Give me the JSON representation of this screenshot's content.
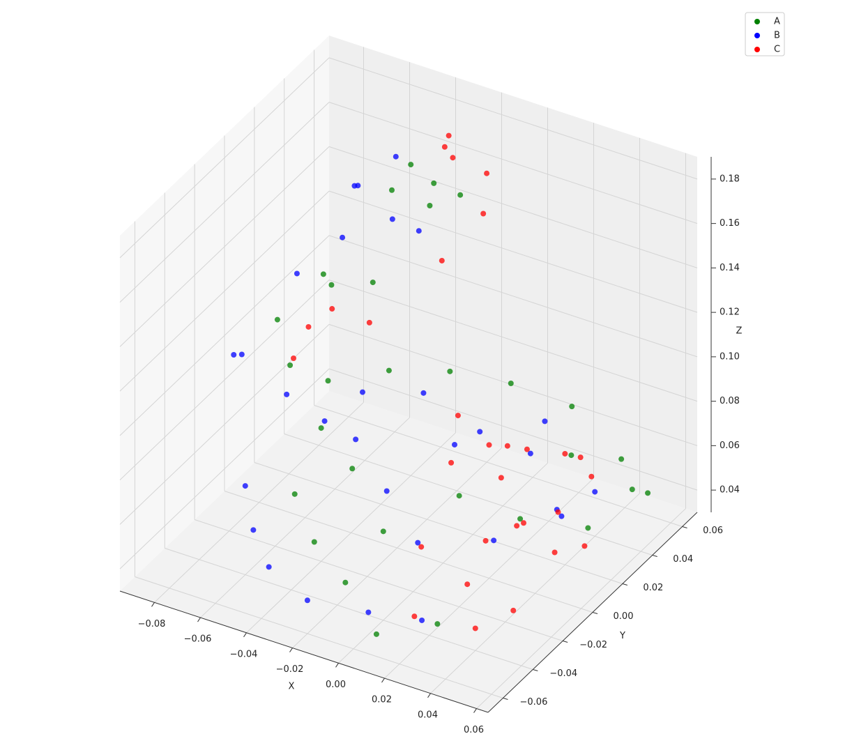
{
  "chart_data": {
    "type": "scatter3d",
    "xlabel": "X",
    "ylabel": "Y",
    "zlabel": "Z",
    "xlim": [
      -0.095,
      0.065
    ],
    "ylim": [
      -0.07,
      0.07
    ],
    "zlim": [
      0.03,
      0.19
    ],
    "xticks": [
      {
        "value": -0.08,
        "label": "−0.08"
      },
      {
        "value": -0.06,
        "label": "−0.06"
      },
      {
        "value": -0.04,
        "label": "−0.04"
      },
      {
        "value": -0.02,
        "label": "−0.02"
      },
      {
        "value": 0,
        "label": "0.00"
      },
      0.02,
      0.04,
      0.06
    ],
    "yticks": [
      {
        "value": -0.06,
        "label": "−0.06"
      },
      {
        "value": -0.04,
        "label": "−0.04"
      },
      {
        "value": -0.02,
        "label": "−0.02"
      },
      {
        "value": 0,
        "label": "0.00"
      },
      0.02,
      0.04,
      0.06
    ],
    "zticks": [
      0.04,
      0.06,
      0.08,
      {
        "value": 0.1,
        "label": "0.10"
      },
      0.12,
      0.14,
      0.16,
      0.18
    ],
    "grid": true,
    "legend": "upper right",
    "series": [
      {
        "name": "A",
        "color": "#008000",
        "x": [
          -0.072,
          -0.065,
          -0.06,
          -0.055,
          -0.05,
          -0.045,
          -0.04,
          -0.035,
          -0.03,
          -0.025,
          -0.05,
          -0.04,
          -0.03,
          -0.02,
          -0.01,
          0.0,
          0.01,
          0.02,
          0.03,
          0.04,
          0.045,
          0.05,
          0.03,
          0.01,
          -0.01,
          -0.03,
          -0.045,
          0.02,
          0.05,
          0.04
        ],
        "y": [
          0.0,
          0.02,
          -0.01,
          0.01,
          0.03,
          0.035,
          0.04,
          0.045,
          0.04,
          0.05,
          0.0,
          -0.02,
          0.01,
          -0.03,
          0.02,
          -0.04,
          0.03,
          -0.02,
          0.04,
          -0.01,
          0.05,
          0.02,
          -0.05,
          -0.06,
          -0.05,
          -0.04,
          -0.03,
          0.055,
          0.06,
          0.065
        ],
        "z": [
          0.115,
          0.125,
          0.105,
          0.13,
          0.12,
          0.16,
          0.17,
          0.15,
          0.165,
          0.155,
          0.095,
          0.09,
          0.1,
          0.085,
          0.1,
          0.07,
          0.095,
          0.08,
          0.085,
          0.07,
          0.06,
          0.05,
          0.045,
          0.04,
          0.05,
          0.055,
          0.065,
          0.05,
          0.04,
          0.035
        ]
      },
      {
        "name": "B",
        "color": "#0000ff",
        "x": [
          -0.078,
          -0.07,
          -0.068,
          -0.06,
          -0.055,
          -0.05,
          -0.045,
          -0.04,
          -0.035,
          -0.03,
          -0.045,
          -0.035,
          -0.025,
          -0.015,
          -0.005,
          0.005,
          0.015,
          0.025,
          0.035,
          0.045,
          -0.06,
          -0.05,
          -0.04,
          -0.02,
          0.0,
          0.02,
          0.03,
          -0.01,
          0.015,
          0.04
        ],
        "y": [
          -0.02,
          0.01,
          -0.03,
          0.025,
          -0.02,
          0.02,
          0.01,
          0.03,
          0.02,
          0.03,
          -0.01,
          0.0,
          -0.02,
          0.01,
          -0.03,
          0.0,
          -0.04,
          0.02,
          -0.02,
          0.01,
          -0.04,
          -0.05,
          -0.055,
          -0.06,
          -0.05,
          -0.045,
          0.03,
          0.04,
          0.045,
          0.04
        ],
        "z": [
          0.11,
          0.13,
          0.12,
          0.14,
          0.1,
          0.17,
          0.178,
          0.18,
          0.16,
          0.15,
          0.085,
          0.095,
          0.09,
          0.095,
          0.08,
          0.085,
          0.07,
          0.075,
          0.065,
          0.06,
          0.07,
          0.06,
          0.05,
          0.045,
          0.04,
          0.04,
          0.045,
          0.06,
          0.07,
          0.05
        ]
      },
      {
        "name": "C",
        "color": "#ff0000",
        "x": [
          -0.065,
          -0.058,
          -0.052,
          -0.045,
          -0.035,
          -0.03,
          -0.025,
          -0.02,
          -0.015,
          -0.02,
          0.0,
          0.01,
          0.02,
          0.03,
          0.04,
          0.045,
          0.05,
          0.055,
          0.055,
          0.05,
          0.04,
          0.03,
          0.02,
          0.01,
          0.035,
          0.045,
          0.025,
          0.05,
          0.015,
          0.035
        ],
        "y": [
          0.0,
          0.015,
          -0.01,
          0.02,
          0.055,
          0.05,
          0.045,
          0.06,
          0.05,
          0.03,
          0.01,
          -0.01,
          0.0,
          0.01,
          0.02,
          -0.02,
          0.0,
          -0.01,
          0.01,
          -0.03,
          -0.04,
          -0.03,
          -0.05,
          -0.03,
          0.0,
          0.03,
          -0.01,
          0.015,
          0.02,
          -0.015
        ],
        "z": [
          0.1,
          0.115,
          0.125,
          0.11,
          0.17,
          0.18,
          0.175,
          0.16,
          0.15,
          0.14,
          0.09,
          0.085,
          0.09,
          0.085,
          0.08,
          0.075,
          0.07,
          0.06,
          0.05,
          0.045,
          0.04,
          0.05,
          0.045,
          0.06,
          0.06,
          0.065,
          0.055,
          0.085,
          0.075,
          0.09
        ]
      }
    ]
  }
}
